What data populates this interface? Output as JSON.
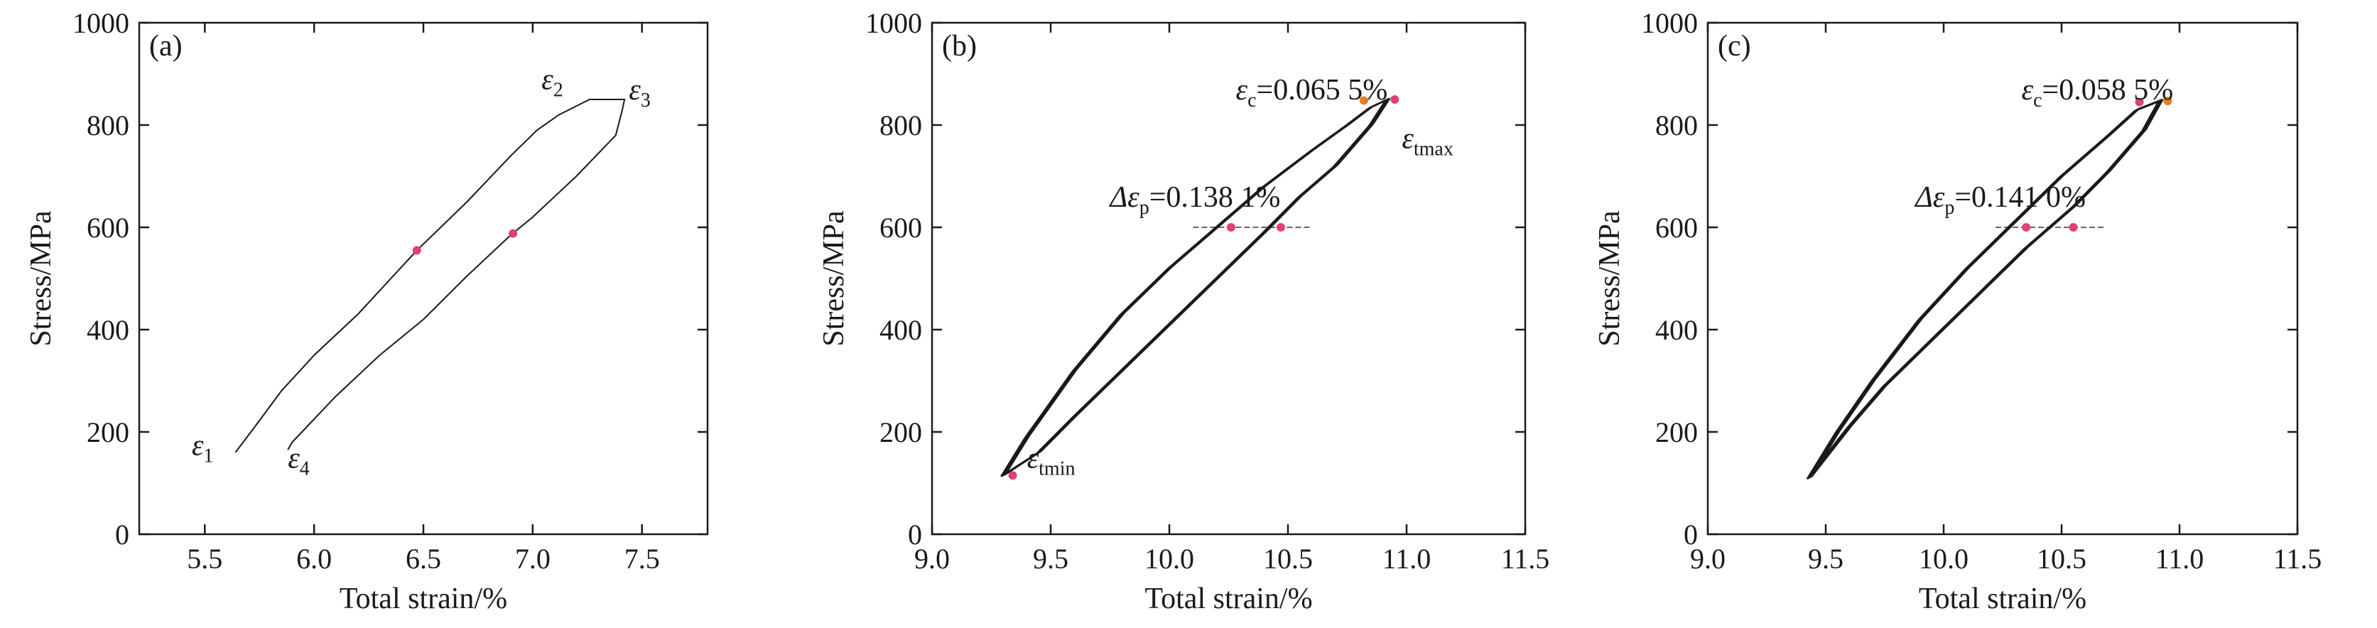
{
  "chart_data": [
    {
      "type": "line",
      "panel_label": "(a)",
      "xlabel": "Total strain/%",
      "ylabel": "Stress/MPa",
      "xlim": [
        5.2,
        7.8
      ],
      "ylim": [
        0,
        1000
      ],
      "xticks": [
        "5.5",
        "6.0",
        "6.5",
        "7.0",
        "7.5"
      ],
      "xtick_values": [
        5.5,
        6.0,
        6.5,
        7.0,
        7.5
      ],
      "yticks": [
        "0",
        "200",
        "400",
        "600",
        "800",
        "1000"
      ],
      "ytick_values": [
        0,
        200,
        400,
        600,
        800,
        1000
      ],
      "series": [
        {
          "loop": "single",
          "x": [
            5.64,
            5.72,
            5.85,
            6.0,
            6.2,
            6.47,
            6.7,
            6.9,
            7.02,
            7.12,
            7.26,
            7.42,
            7.41,
            7.38,
            7.2,
            7.0,
            6.9,
            6.7,
            6.5,
            6.3,
            6.1,
            5.9,
            5.88
          ],
          "y": [
            160,
            205,
            280,
            350,
            430,
            555,
            650,
            740,
            790,
            820,
            850,
            850,
            830,
            780,
            700,
            620,
            585,
            505,
            420,
            350,
            270,
            180,
            165
          ],
          "color": "#1a1a1a"
        }
      ],
      "markers": [
        {
          "x": 6.47,
          "y": 555,
          "color": "#e0407a"
        },
        {
          "x": 6.91,
          "y": 588,
          "color": "#e0407a"
        }
      ],
      "annotations": [
        {
          "symbol": "ε",
          "sub": "1",
          "x": 5.44,
          "y": 155
        },
        {
          "symbol": "ε",
          "sub": "2",
          "x": 7.04,
          "y": 870
        },
        {
          "symbol": "ε",
          "sub": "3",
          "x": 7.44,
          "y": 850
        },
        {
          "symbol": "ε",
          "sub": "4",
          "x": 5.88,
          "y": 130
        }
      ]
    },
    {
      "type": "line",
      "panel_label": "(b)",
      "xlabel": "Total strain/%",
      "ylabel": "Stress/MPa",
      "xlim": [
        9.0,
        11.5
      ],
      "ylim": [
        0,
        1000
      ],
      "xticks": [
        "9.0",
        "9.5",
        "10.0",
        "10.5",
        "11.0",
        "11.5"
      ],
      "xtick_values": [
        9.0,
        9.5,
        10.0,
        10.5,
        11.0,
        11.5
      ],
      "yticks": [
        "0",
        "200",
        "400",
        "600",
        "800",
        "1000"
      ],
      "ytick_values": [
        0,
        200,
        400,
        600,
        800,
        1000
      ],
      "series": [
        {
          "loop": "upper-branch",
          "x": [
            9.3,
            9.4,
            9.6,
            9.8,
            10.0,
            10.2,
            10.4,
            10.6,
            10.75,
            10.85,
            10.92
          ],
          "y": [
            115,
            190,
            320,
            430,
            520,
            600,
            680,
            750,
            800,
            835,
            850
          ],
          "color": "#1a1a1a"
        },
        {
          "loop": "lower-branch",
          "x": [
            10.92,
            10.85,
            10.7,
            10.55,
            10.4,
            10.2,
            10.0,
            9.8,
            9.6,
            9.45,
            9.3
          ],
          "y": [
            850,
            800,
            720,
            660,
            590,
            500,
            410,
            320,
            230,
            160,
            115
          ],
          "color": "#1a1a1a"
        }
      ],
      "markers": [
        {
          "x": 10.82,
          "y": 848,
          "color": "#e08020"
        },
        {
          "x": 10.95,
          "y": 850,
          "color": "#e0407a"
        },
        {
          "x": 10.26,
          "y": 600,
          "color": "#e0407a"
        },
        {
          "x": 10.47,
          "y": 600,
          "color": "#e0407a"
        },
        {
          "x": 9.34,
          "y": 115,
          "color": "#e0407a"
        }
      ],
      "hlines": [
        {
          "x1": 10.1,
          "x2": 10.6,
          "y": 600
        }
      ],
      "annotations": [
        {
          "symbol": "ε",
          "sub": "c",
          "rest": "=0.065 5%",
          "x": 10.28,
          "y": 850
        },
        {
          "symbol": "ε",
          "sub": "tmax",
          "x": 10.98,
          "y": 755
        },
        {
          "symbol": "Δε",
          "sub": "p",
          "rest": "=0.138 1%",
          "x": 9.75,
          "y": 640
        },
        {
          "symbol": "ε",
          "sub": "tmin",
          "x": 9.4,
          "y": 130
        }
      ]
    },
    {
      "type": "line",
      "panel_label": "(c)",
      "xlabel": "Total strain/%",
      "ylabel": "Stress/MPa",
      "xlim": [
        9.0,
        11.5
      ],
      "ylim": [
        0,
        1000
      ],
      "xticks": [
        "9.0",
        "9.5",
        "10.0",
        "10.5",
        "11.0",
        "11.5"
      ],
      "xtick_values": [
        9.0,
        9.5,
        10.0,
        10.5,
        11.0,
        11.5
      ],
      "yticks": [
        "0",
        "200",
        "400",
        "600",
        "800",
        "1000"
      ],
      "ytick_values": [
        0,
        200,
        400,
        600,
        800,
        1000
      ],
      "series": [
        {
          "loop": "upper-branch",
          "x": [
            9.43,
            9.55,
            9.7,
            9.9,
            10.1,
            10.3,
            10.5,
            10.7,
            10.82,
            10.92
          ],
          "y": [
            110,
            200,
            300,
            420,
            520,
            610,
            700,
            780,
            830,
            848
          ],
          "color": "#1a1a1a"
        },
        {
          "loop": "lower-branch",
          "x": [
            10.92,
            10.85,
            10.7,
            10.55,
            10.35,
            10.15,
            9.95,
            9.75,
            9.6,
            9.43
          ],
          "y": [
            848,
            790,
            710,
            640,
            560,
            470,
            380,
            290,
            210,
            110
          ],
          "color": "#1a1a1a"
        }
      ],
      "markers": [
        {
          "x": 10.83,
          "y": 845,
          "color": "#e0407a"
        },
        {
          "x": 10.95,
          "y": 847,
          "color": "#e08020"
        },
        {
          "x": 10.35,
          "y": 600,
          "color": "#e0407a"
        },
        {
          "x": 10.55,
          "y": 600,
          "color": "#e0407a"
        }
      ],
      "hlines": [
        {
          "x1": 10.22,
          "x2": 10.68,
          "y": 600
        }
      ],
      "annotations": [
        {
          "symbol": "ε",
          "sub": "c",
          "rest": "=0.058 5%",
          "x": 10.33,
          "y": 850
        },
        {
          "symbol": "Δε",
          "sub": "p",
          "rest": "=0.141 0%",
          "x": 9.88,
          "y": 640
        }
      ]
    }
  ]
}
